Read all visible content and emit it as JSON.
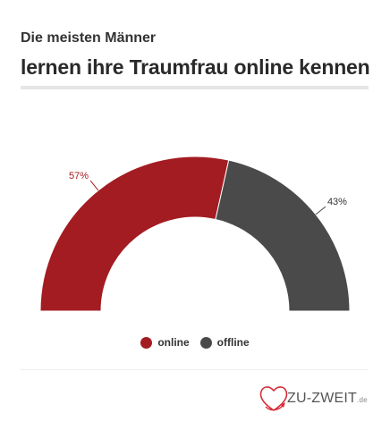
{
  "header": {
    "subtitle": "Die meisten Männer",
    "title": "lernen ihre Traumfrau online kennen"
  },
  "chart_data": {
    "type": "pie",
    "variant": "semi-donut",
    "categories": [
      "online",
      "offline"
    ],
    "values": [
      57,
      43
    ],
    "labels": [
      "57%",
      "43%"
    ],
    "colors": [
      "#a31c22",
      "#4a4a4a"
    ],
    "legend_position": "bottom"
  },
  "legend": {
    "items": [
      {
        "label": "online",
        "color": "#a31c22"
      },
      {
        "label": "offline",
        "color": "#4a4a4a"
      }
    ]
  },
  "footer": {
    "logo_text": "ZU-ZWEIT",
    "logo_tld": ".de",
    "logo_icon": "heart-icon",
    "logo_color": "#d62b36"
  }
}
